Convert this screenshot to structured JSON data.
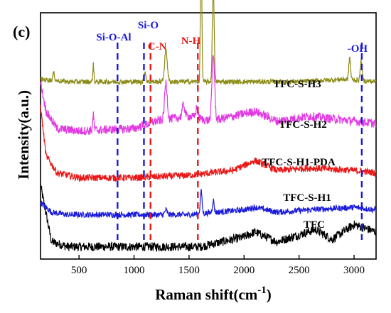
{
  "chart_data": {
    "type": "line",
    "panel_label": "(c)",
    "xlabel": "Raman shift(cm",
    "xlabel_sup": "-1",
    "xlabel_close": ")",
    "ylabel": "Intensity(a.u.)",
    "xlim": [
      150,
      3200
    ],
    "xticks": [
      "500",
      "1000",
      "1500",
      "2000",
      "2500",
      "3000"
    ],
    "grid": false,
    "legend": "inline labels",
    "peak_markers": [
      {
        "label": "Si-O-Al",
        "x": 850,
        "color": "#1a1adb"
      },
      {
        "label": "Si-O",
        "x": 1090,
        "color": "#1a1adb"
      },
      {
        "label": "C-N",
        "x": 1150,
        "color": "#e81818"
      },
      {
        "label": "N-H",
        "x": 1580,
        "color": "#e81818"
      },
      {
        "label": "-OH",
        "x": 3070,
        "color": "#1a1adb"
      }
    ],
    "series": [
      {
        "name": "TFC",
        "color": "#000000",
        "base": 0.04,
        "noise": 0.018,
        "points": [
          [
            150,
            0.3
          ],
          [
            250,
            0.07
          ],
          [
            400,
            0.05
          ],
          [
            1000,
            0.05
          ],
          [
            1600,
            0.05
          ],
          [
            2000,
            0.09
          ],
          [
            2100,
            0.11
          ],
          [
            2300,
            0.07
          ],
          [
            2650,
            0.12
          ],
          [
            2800,
            0.08
          ],
          [
            3000,
            0.14
          ],
          [
            3200,
            0.11
          ]
        ],
        "peaks": []
      },
      {
        "name": "TFC-S-H1",
        "color": "#1a1adb",
        "base": 0.18,
        "noise": 0.012,
        "points": [
          [
            150,
            0.23
          ],
          [
            250,
            0.19
          ],
          [
            400,
            0.18
          ],
          [
            1000,
            0.18
          ],
          [
            1500,
            0.18
          ],
          [
            2000,
            0.2
          ],
          [
            2100,
            0.21
          ],
          [
            2300,
            0.19
          ],
          [
            2600,
            0.2
          ],
          [
            3000,
            0.21
          ],
          [
            3200,
            0.2
          ]
        ],
        "peaks": [
          [
            1610,
            0.09,
            8
          ],
          [
            1720,
            0.05,
            8
          ],
          [
            1290,
            0.02,
            10
          ]
        ]
      },
      {
        "name": "TFC-S-H1-PDA",
        "color": "#e81818",
        "base": 0.33,
        "noise": 0.014,
        "points": [
          [
            150,
            0.62
          ],
          [
            200,
            0.42
          ],
          [
            300,
            0.35
          ],
          [
            500,
            0.33
          ],
          [
            1000,
            0.33
          ],
          [
            1500,
            0.34
          ],
          [
            1900,
            0.36
          ],
          [
            2100,
            0.4
          ],
          [
            2300,
            0.36
          ],
          [
            2600,
            0.37
          ],
          [
            3000,
            0.36
          ],
          [
            3200,
            0.35
          ]
        ],
        "peaks": []
      },
      {
        "name": "TFC-S-H2",
        "color": "#e23ae2",
        "base": 0.5,
        "noise": 0.018,
        "points": [
          [
            150,
            0.72
          ],
          [
            200,
            0.6
          ],
          [
            300,
            0.53
          ],
          [
            500,
            0.52
          ],
          [
            1000,
            0.53
          ],
          [
            1200,
            0.56
          ],
          [
            1500,
            0.58
          ],
          [
            1700,
            0.56
          ],
          [
            2100,
            0.6
          ],
          [
            2300,
            0.56
          ],
          [
            2600,
            0.58
          ],
          [
            3000,
            0.56
          ],
          [
            3200,
            0.55
          ]
        ],
        "peaks": [
          [
            1720,
            0.27,
            12
          ],
          [
            1290,
            0.15,
            12
          ],
          [
            630,
            0.06,
            6
          ],
          [
            1450,
            0.05,
            12
          ],
          [
            1570,
            0.04,
            10
          ]
        ]
      },
      {
        "name": "TFC-S-H3",
        "color": "#8c8c18",
        "base": 0.72,
        "noise": 0.01,
        "points": [
          [
            150,
            0.73
          ],
          [
            400,
            0.72
          ],
          [
            1000,
            0.72
          ],
          [
            1500,
            0.72
          ],
          [
            2000,
            0.72
          ],
          [
            2500,
            0.72
          ],
          [
            2900,
            0.73
          ],
          [
            3200,
            0.72
          ]
        ],
        "peaks": [
          [
            1610,
            0.62,
            6
          ],
          [
            1720,
            0.4,
            8
          ],
          [
            1290,
            0.13,
            12
          ],
          [
            630,
            0.07,
            5
          ],
          [
            1100,
            0.04,
            8
          ],
          [
            2960,
            0.09,
            8
          ],
          [
            3065,
            0.08,
            8
          ],
          [
            270,
            0.03,
            8
          ]
        ]
      }
    ]
  }
}
